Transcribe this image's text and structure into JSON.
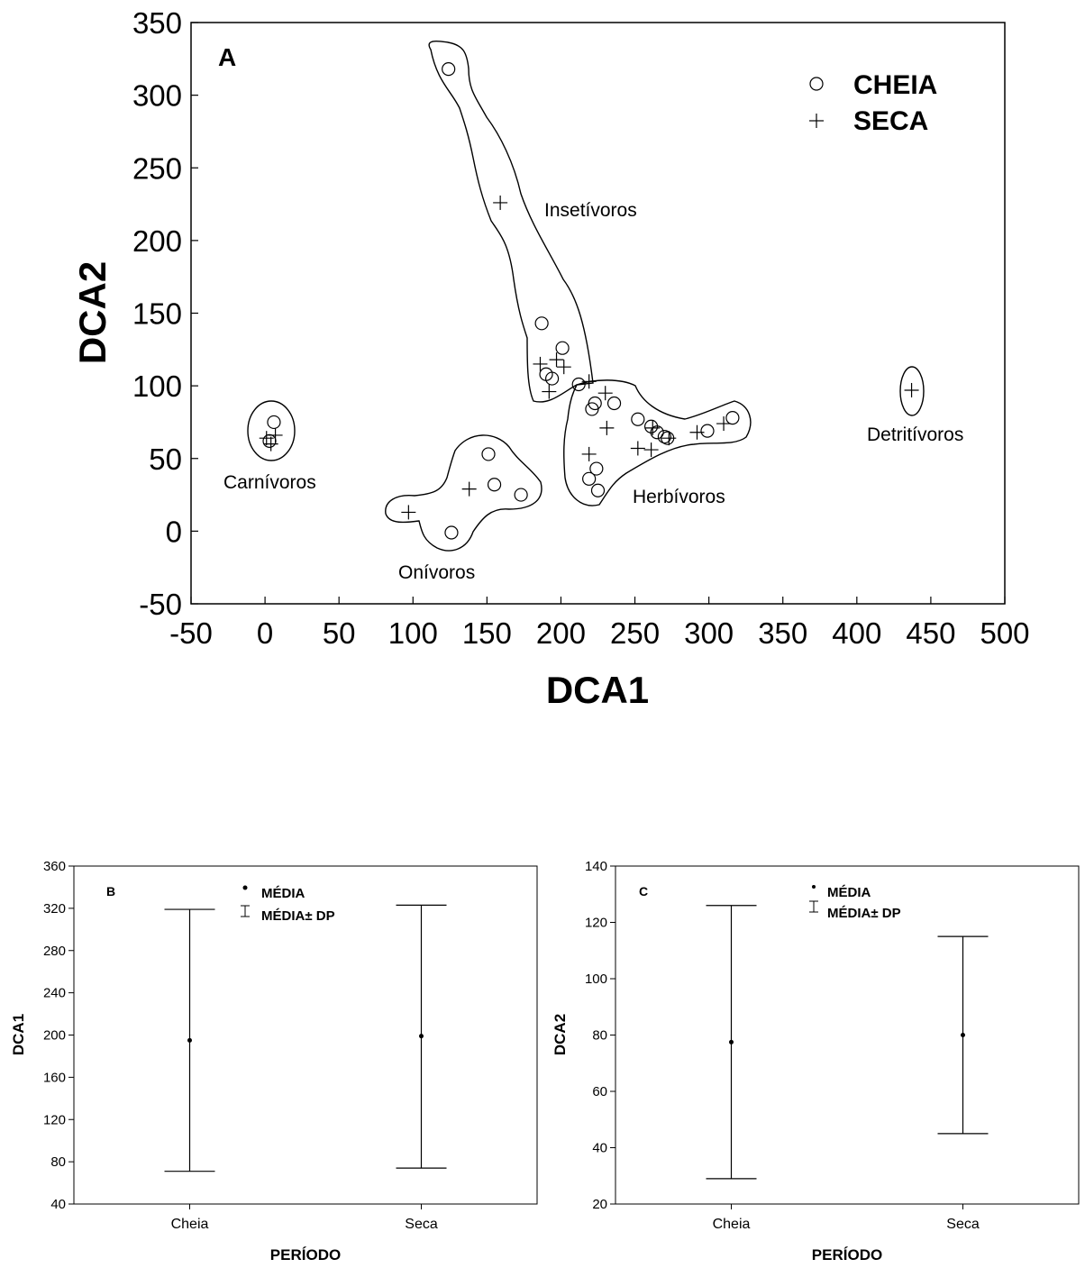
{
  "chart_data": [
    {
      "panel": "A",
      "type": "scatter",
      "xlabel": "DCA1",
      "ylabel": "DCA2",
      "xlim": [
        -50,
        500
      ],
      "ylim": [
        -50,
        350
      ],
      "xticks": [
        -50,
        0,
        50,
        100,
        150,
        200,
        250,
        300,
        350,
        400,
        450,
        500
      ],
      "yticks": [
        -50,
        0,
        50,
        100,
        150,
        200,
        250,
        300,
        350
      ],
      "legend_position": "top-right",
      "series": [
        {
          "name": "CHEIA",
          "marker": "circle",
          "points": [
            [
              6,
              75
            ],
            [
              3,
              62
            ],
            [
              124,
              318
            ],
            [
              187,
              143
            ],
            [
              201,
              126
            ],
            [
              190,
              108
            ],
            [
              194,
              105
            ],
            [
              212,
              101
            ],
            [
              221,
              84
            ],
            [
              223,
              88
            ],
            [
              236,
              88
            ],
            [
              252,
              77
            ],
            [
              261,
              72
            ],
            [
              265,
              68
            ],
            [
              270,
              65
            ],
            [
              272,
              64
            ],
            [
              299,
              69
            ],
            [
              316,
              78
            ],
            [
              219,
              36
            ],
            [
              224,
              43
            ],
            [
              225,
              28
            ],
            [
              151,
              53
            ],
            [
              155,
              32
            ],
            [
              173,
              25
            ],
            [
              126,
              -1
            ]
          ]
        },
        {
          "name": "SECA",
          "marker": "plus",
          "points": [
            [
              1,
              64
            ],
            [
              4,
              60
            ],
            [
              7,
              66
            ],
            [
              159,
              226
            ],
            [
              186,
              115
            ],
            [
              197,
              118
            ],
            [
              202,
              113
            ],
            [
              192,
              96
            ],
            [
              219,
              103
            ],
            [
              230,
              95
            ],
            [
              231,
              71
            ],
            [
              219,
              53
            ],
            [
              252,
              57
            ],
            [
              261,
              56
            ],
            [
              262,
              71
            ],
            [
              273,
              64
            ],
            [
              292,
              68
            ],
            [
              310,
              74
            ],
            [
              97,
              13
            ],
            [
              138,
              29
            ],
            [
              437,
              97
            ]
          ]
        }
      ],
      "group_labels": [
        "Insetívoros",
        "Carnívoros",
        "Onívoros",
        "Herbívoros",
        "Detritívoros"
      ],
      "panel_label": "A"
    },
    {
      "panel": "B",
      "type": "errorbar",
      "xlabel": "PERÍODO",
      "ylabel": "DCA1",
      "ylim": [
        40,
        360
      ],
      "yticks": [
        40,
        80,
        120,
        160,
        200,
        240,
        280,
        320,
        360
      ],
      "categories": [
        "Cheia",
        "Seca"
      ],
      "mean": [
        195,
        199
      ],
      "lower": [
        71,
        74
      ],
      "upper": [
        319,
        323
      ],
      "legend": [
        "MÉDIA",
        "MÉDIA± DP"
      ],
      "legend_position": "top-left",
      "panel_label": "B"
    },
    {
      "panel": "C",
      "type": "errorbar",
      "xlabel": "PERÍODO",
      "ylabel": "DCA2",
      "ylim": [
        20,
        140
      ],
      "yticks": [
        20,
        40,
        60,
        80,
        100,
        120,
        140
      ],
      "categories": [
        "Cheia",
        "Seca"
      ],
      "mean": [
        77.5,
        80
      ],
      "lower": [
        29,
        45
      ],
      "upper": [
        126,
        115
      ],
      "legend": [
        "MÉDIA",
        "MÉDIA± DP"
      ],
      "legend_position": "top-left",
      "panel_label": "C"
    }
  ]
}
